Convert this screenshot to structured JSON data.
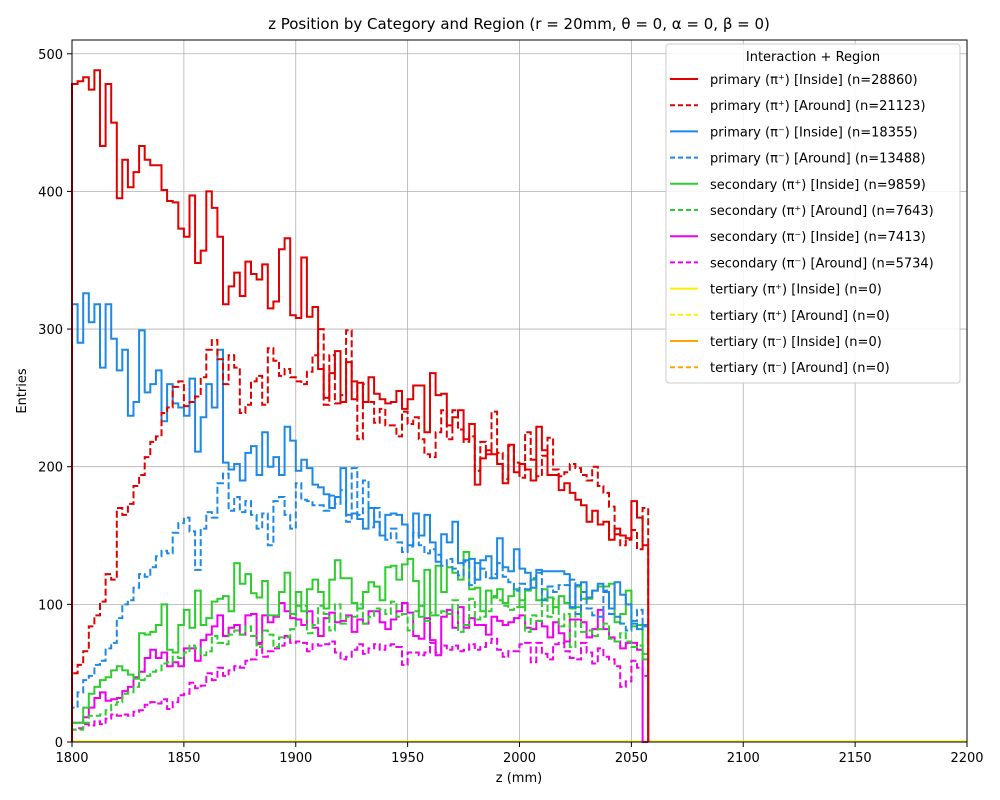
{
  "chart_data": {
    "type": "histogram-step",
    "title": "z Position by Category and Region (r = 20mm, θ = 0, α = 0, β = 0)",
    "xlabel": "z (mm)",
    "ylabel": "Entries",
    "xlim": [
      1800,
      2200
    ],
    "ylim": [
      0,
      510
    ],
    "xticks": [
      1800,
      1850,
      1900,
      1950,
      2000,
      2050,
      2100,
      2150,
      2200
    ],
    "yticks": [
      0,
      100,
      200,
      300,
      400,
      500
    ],
    "grid": true,
    "bin_start": 1800,
    "bin_width": 2.5,
    "legend": {
      "title": "Interaction + Region",
      "placement": "top-right"
    },
    "series": [
      {
        "name": "primary (π⁺) [Inside] (n=28860)",
        "color": "#e00000",
        "dash": "solid",
        "values": [
          478,
          480,
          483,
          474,
          488,
          433,
          478,
          450,
          395,
          423,
          403,
          414,
          433,
          423,
          419,
          419,
          401,
          393,
          392,
          373,
          367,
          397,
          348,
          357,
          400,
          388,
          367,
          318,
          331,
          341,
          324,
          349,
          340,
          336,
          347,
          315,
          320,
          358,
          366,
          310,
          308,
          352,
          309,
          316,
          271,
          250,
          268,
          284,
          247,
          276,
          249,
          261,
          247,
          265,
          253,
          249,
          246,
          247,
          255,
          242,
          249,
          259,
          259,
          225,
          268,
          252,
          253,
          230,
          236,
          241,
          220,
          231,
          187,
          206,
          212,
          209,
          202,
          188,
          216,
          196,
          202,
          198,
          190,
          229,
          212,
          194,
          194,
          183,
          188,
          181,
          176,
          172,
          160,
          168,
          158,
          160,
          147,
          155,
          150,
          148,
          175,
          163,
          143
        ]
      },
      {
        "name": "primary (π⁺) [Around] (n=21123)",
        "color": "#e00000",
        "dash": "dashed",
        "values": [
          50,
          56,
          66,
          84,
          92,
          102,
          122,
          118,
          170,
          165,
          173,
          186,
          194,
          207,
          218,
          222,
          239,
          243,
          258,
          262,
          244,
          247,
          251,
          265,
          285,
          292,
          278,
          260,
          281,
          272,
          239,
          245,
          262,
          266,
          245,
          286,
          277,
          266,
          271,
          265,
          262,
          260,
          269,
          281,
          300,
          245,
          281,
          246,
          252,
          299,
          262,
          220,
          260,
          247,
          232,
          242,
          230,
          230,
          222,
          240,
          231,
          236,
          220,
          209,
          207,
          225,
          241,
          220,
          241,
          227,
          218,
          222,
          197,
          218,
          209,
          240,
          210,
          191,
          215,
          203,
          192,
          225,
          205,
          193,
          208,
          221,
          198,
          193,
          196,
          202,
          199,
          194,
          190,
          200,
          186,
          181,
          171,
          151,
          143,
          147,
          154,
          140,
          170
        ]
      },
      {
        "name": "primary (π⁻) [Inside] (n=18355)",
        "color": "#1e88e5",
        "dash": "solid",
        "values": [
          318,
          290,
          326,
          305,
          318,
          272,
          318,
          293,
          270,
          285,
          237,
          247,
          299,
          254,
          260,
          270,
          233,
          260,
          246,
          243,
          237,
          264,
          211,
          236,
          260,
          243,
          285,
          203,
          198,
          202,
          190,
          210,
          215,
          194,
          225,
          200,
          207,
          194,
          229,
          219,
          197,
          205,
          199,
          187,
          185,
          180,
          170,
          178,
          199,
          165,
          166,
          162,
          155,
          170,
          160,
          150,
          165,
          166,
          165,
          158,
          143,
          166,
          150,
          165,
          145,
          131,
          151,
          145,
          160,
          130,
          132,
          133,
          118,
          132,
          135,
          119,
          148,
          127,
          124,
          140,
          126,
          123,
          112,
          125,
          124,
          124,
          124,
          124,
          122,
          98,
          114,
          116,
          105,
          110,
          115,
          109,
          97,
          116,
          107,
          100,
          86,
          82,
          85
        ]
      },
      {
        "name": "primary (π⁻) [Around] (n=13488)",
        "color": "#1e88e5",
        "dash": "dashed",
        "values": [
          25,
          36,
          45,
          48,
          56,
          59,
          68,
          72,
          90,
          100,
          103,
          112,
          122,
          120,
          127,
          135,
          139,
          137,
          152,
          159,
          163,
          153,
          125,
          155,
          167,
          163,
          188,
          195,
          168,
          178,
          167,
          175,
          165,
          155,
          166,
          143,
          175,
          178,
          165,
          155,
          188,
          176,
          175,
          172,
          172,
          168,
          179,
          173,
          183,
          160,
          199,
          165,
          190,
          156,
          170,
          150,
          147,
          155,
          145,
          138,
          142,
          152,
          143,
          137,
          140,
          136,
          128,
          133,
          126,
          121,
          131,
          114,
          130,
          126,
          119,
          122,
          130,
          120,
          116,
          110,
          115,
          111,
          119,
          123,
          103,
          113,
          109,
          114,
          114,
          118,
          93,
          109,
          97,
          92,
          91,
          110,
          93,
          91,
          86,
          81,
          88,
          96,
          84
        ]
      },
      {
        "name": "secondary (π⁺) [Inside] (n=9859)",
        "color": "#2ecc2e",
        "dash": "solid",
        "values": [
          14,
          14,
          25,
          35,
          40,
          45,
          47,
          52,
          55,
          52,
          49,
          46,
          79,
          78,
          80,
          85,
          100,
          67,
          65,
          85,
          96,
          83,
          110,
          85,
          90,
          102,
          104,
          106,
          95,
          130,
          115,
          122,
          108,
          105,
          117,
          92,
          92,
          109,
          123,
          93,
          109,
          95,
          111,
          118,
          109,
          97,
          118,
          132,
          119,
          119,
          101,
          97,
          109,
          116,
          113,
          103,
          127,
          128,
          118,
          129,
          133,
          117,
          91,
          125,
          92,
          128,
          109,
          127,
          123,
          118,
          138,
          111,
          112,
          95,
          110,
          105,
          111,
          101,
          106,
          111,
          98,
          110,
          118,
          103,
          111,
          105,
          98,
          106,
          101,
          97,
          113,
          104,
          104,
          110,
          113,
          113,
          115,
          87,
          93,
          110,
          84,
          85,
          60
        ]
      },
      {
        "name": "secondary (π⁺) [Around] (n=7643)",
        "color": "#2ecc2e",
        "dash": "dashed",
        "values": [
          9,
          9,
          14,
          19,
          19,
          20,
          23,
          27,
          29,
          35,
          36,
          40,
          45,
          48,
          51,
          52,
          57,
          58,
          62,
          61,
          65,
          70,
          68,
          63,
          66,
          77,
          72,
          71,
          78,
          81,
          78,
          84,
          77,
          69,
          81,
          78,
          69,
          76,
          76,
          82,
          99,
          99,
          79,
          85,
          99,
          93,
          81,
          100,
          86,
          91,
          91,
          100,
          86,
          91,
          97,
          96,
          93,
          102,
          91,
          93,
          81,
          95,
          99,
          88,
          94,
          92,
          95,
          93,
          103,
          80,
          85,
          104,
          89,
          91,
          95,
          106,
          103,
          99,
          96,
          98,
          103,
          80,
          92,
          88,
          104,
          91,
          104,
          84,
          93,
          69,
          98,
          80,
          81,
          77,
          82,
          86,
          75,
          73,
          79,
          73,
          69,
          70,
          64
        ]
      },
      {
        "name": "secondary (π⁻) [Inside] (n=7413)",
        "color": "#ee00ee",
        "dash": "solid",
        "values": [
          14,
          14,
          18,
          25,
          32,
          36,
          30,
          31,
          32,
          37,
          40,
          47,
          51,
          61,
          67,
          61,
          65,
          55,
          58,
          55,
          68,
          68,
          59,
          74,
          78,
          84,
          92,
          77,
          83,
          85,
          78,
          92,
          93,
          72,
          92,
          87,
          91,
          101,
          95,
          90,
          89,
          85,
          95,
          83,
          77,
          90,
          94,
          87,
          88,
          92,
          80,
          89,
          86,
          95,
          95,
          87,
          82,
          89,
          95,
          101,
          94,
          77,
          75,
          90,
          74,
          63,
          91,
          96,
          83,
          98,
          83,
          90,
          85,
          85,
          78,
          91,
          88,
          85,
          87,
          90,
          92,
          83,
          82,
          88,
          84,
          76,
          87,
          79,
          73,
          89,
          89,
          87,
          76,
          82,
          96,
          82,
          76,
          73,
          68,
          72,
          72,
          67,
          0
        ]
      },
      {
        "name": "secondary (π⁻) [Around] (n=5734)",
        "color": "#ee00ee",
        "dash": "dashed",
        "values": [
          9,
          10,
          13,
          12,
          15,
          13,
          17,
          20,
          19,
          20,
          19,
          22,
          23,
          27,
          29,
          28,
          31,
          24,
          29,
          34,
          35,
          43,
          39,
          41,
          50,
          45,
          54,
          48,
          52,
          55,
          54,
          59,
          60,
          71,
          62,
          66,
          68,
          70,
          77,
          72,
          73,
          72,
          66,
          71,
          70,
          71,
          73,
          65,
          60,
          62,
          67,
          71,
          64,
          68,
          71,
          67,
          70,
          71,
          69,
          56,
          65,
          65,
          63,
          65,
          72,
          65,
          70,
          67,
          70,
          66,
          67,
          71,
          67,
          69,
          72,
          75,
          67,
          62,
          66,
          66,
          71,
          72,
          58,
          72,
          64,
          60,
          71,
          72,
          66,
          61,
          60,
          72,
          65,
          57,
          68,
          62,
          60,
          55,
          40,
          44,
          59,
          54,
          48
        ]
      },
      {
        "name": "tertiary (π⁺) [Inside] (n=0)",
        "color": "#ffee00",
        "dash": "solid",
        "values": []
      },
      {
        "name": "tertiary (π⁺) [Around] (n=0)",
        "color": "#ffee00",
        "dash": "dashed",
        "values": []
      },
      {
        "name": "tertiary (π⁻) [Inside] (n=0)",
        "color": "#ffa500",
        "dash": "solid",
        "values": []
      },
      {
        "name": "tertiary (π⁻) [Around] (n=0)",
        "color": "#ffa500",
        "dash": "dashed",
        "values": []
      }
    ]
  }
}
